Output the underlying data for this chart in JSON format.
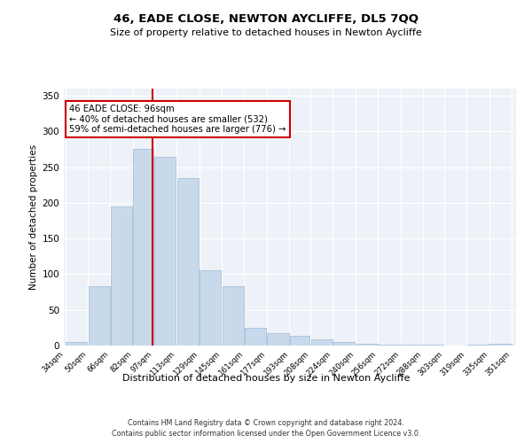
{
  "title1": "46, EADE CLOSE, NEWTON AYCLIFFE, DL5 7QQ",
  "title2": "Size of property relative to detached houses in Newton Aycliffe",
  "xlabel": "Distribution of detached houses by size in Newton Aycliffe",
  "ylabel": "Number of detached properties",
  "footer1": "Contains HM Land Registry data © Crown copyright and database right 2024.",
  "footer2": "Contains public sector information licensed under the Open Government Licence v3.0.",
  "annotation_line1": "46 EADE CLOSE: 96sqm",
  "annotation_line2": "← 40% of detached houses are smaller (532)",
  "annotation_line3": "59% of semi-detached houses are larger (776) →",
  "property_size": 96,
  "bar_left_edges": [
    34,
    50,
    66,
    82,
    97,
    113,
    129,
    145,
    161,
    177,
    193,
    208,
    224,
    240,
    256,
    272,
    288,
    303,
    319,
    335
  ],
  "bar_widths": [
    16,
    16,
    16,
    15,
    16,
    16,
    16,
    16,
    16,
    16,
    15,
    16,
    16,
    16,
    16,
    16,
    15,
    16,
    16,
    16
  ],
  "bar_heights": [
    5,
    83,
    195,
    275,
    265,
    235,
    105,
    83,
    25,
    18,
    14,
    9,
    5,
    3,
    1,
    1,
    1,
    0,
    1,
    2
  ],
  "bar_color": "#c9d9ec",
  "bar_edge_color": "#a8c0d8",
  "vline_color": "#cc0000",
  "vline_x": 96,
  "bg_color": "#eef2f8",
  "grid_color": "#ffffff",
  "fig_bg_color": "#ffffff",
  "annotation_box_color": "#ffffff",
  "annotation_box_edge": "#cc0000",
  "ylim": [
    0,
    360
  ],
  "yticks": [
    0,
    50,
    100,
    150,
    200,
    250,
    300,
    350
  ],
  "tick_labels": [
    "34sqm",
    "50sqm",
    "66sqm",
    "82sqm",
    "97sqm",
    "113sqm",
    "129sqm",
    "145sqm",
    "161sqm",
    "177sqm",
    "193sqm",
    "208sqm",
    "224sqm",
    "240sqm",
    "256sqm",
    "272sqm",
    "288sqm",
    "303sqm",
    "319sqm",
    "335sqm",
    "351sqm"
  ]
}
